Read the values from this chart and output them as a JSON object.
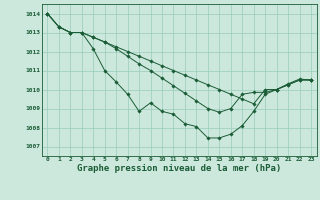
{
  "background_color": "#cce8dd",
  "grid_color": "#99ccbb",
  "line_color": "#1a5c35",
  "marker_color": "#1a5c35",
  "title": "Graphe pression niveau de la mer (hPa)",
  "title_fontsize": 6.5,
  "xlim": [
    -0.5,
    23.5
  ],
  "ylim": [
    1006.5,
    1014.5
  ],
  "yticks": [
    1007,
    1008,
    1009,
    1010,
    1011,
    1012,
    1013,
    1014
  ],
  "xticks": [
    0,
    1,
    2,
    3,
    4,
    5,
    6,
    7,
    8,
    9,
    10,
    11,
    12,
    13,
    14,
    15,
    16,
    17,
    18,
    19,
    20,
    21,
    22,
    23
  ],
  "series": [
    [
      1014.0,
      1013.3,
      1013.0,
      1013.0,
      1012.15,
      1011.0,
      1010.4,
      1009.75,
      1008.85,
      1009.3,
      1008.85,
      1008.7,
      1008.2,
      1008.05,
      1007.45,
      1007.45,
      1007.65,
      1008.1,
      1008.85,
      1009.75,
      1010.0,
      1010.3,
      1010.55,
      1010.5
    ],
    [
      1014.0,
      1013.3,
      1013.0,
      1013.0,
      1012.75,
      1012.5,
      1012.25,
      1012.0,
      1011.75,
      1011.5,
      1011.25,
      1011.0,
      1010.75,
      1010.5,
      1010.25,
      1010.0,
      1009.75,
      1009.5,
      1009.25,
      1010.0,
      1010.0,
      1010.25,
      1010.5,
      1010.5
    ],
    [
      1014.0,
      1013.3,
      1013.0,
      1013.0,
      1012.75,
      1012.5,
      1012.15,
      1011.75,
      1011.35,
      1011.0,
      1010.6,
      1010.2,
      1009.8,
      1009.4,
      1009.0,
      1008.8,
      1009.0,
      1009.75,
      1009.85,
      1009.85,
      1010.0,
      1010.25,
      1010.5,
      1010.5
    ]
  ],
  "figwidth": 3.2,
  "figheight": 2.0,
  "dpi": 100
}
